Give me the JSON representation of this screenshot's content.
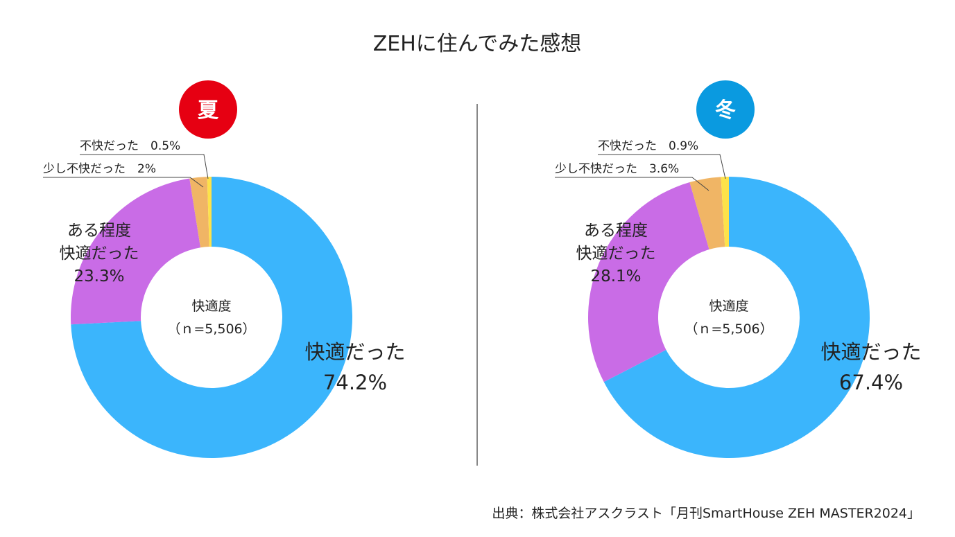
{
  "title": "ZEHに住んでみた感想",
  "source": "出典：株式会社アスクラスト「月刊SmartHouse ZEH MASTER2024」",
  "colors": {
    "comfortable": "#3bb5fc",
    "somewhat_comfortable": "#c96ce6",
    "somewhat_uncomfortable": "#f0b565",
    "uncomfortable": "#fde24a",
    "summer_badge": "#e60012",
    "winter_badge": "#0a9ae0",
    "divider": "#888888"
  },
  "chart_data": [
    {
      "type": "pie",
      "badge": "夏",
      "center_label": "快適度",
      "center_sub": "（ｎ=5,506）",
      "slices": [
        {
          "label": "快適だった",
          "value": 74.2,
          "pct_label": "74.2%"
        },
        {
          "label": "ある程度快適だった",
          "label_line1": "ある程度",
          "label_line2": "快適だった",
          "value": 23.3,
          "pct_label": "23.3%"
        },
        {
          "label": "少し不快だった",
          "value": 2,
          "pct_label": "2%",
          "label_text": "少し不快だった　2%"
        },
        {
          "label": "不快だった",
          "value": 0.5,
          "pct_label": "0.5%",
          "label_text": "不快だった　0.5%"
        }
      ]
    },
    {
      "type": "pie",
      "badge": "冬",
      "center_label": "快適度",
      "center_sub": "（ｎ=5,506）",
      "slices": [
        {
          "label": "快適だった",
          "value": 67.4,
          "pct_label": "67.4%"
        },
        {
          "label": "ある程度快適だった",
          "label_line1": "ある程度",
          "label_line2": "快適だった",
          "value": 28.1,
          "pct_label": "28.1%"
        },
        {
          "label": "少し不快だった",
          "value": 3.6,
          "pct_label": "3.6%",
          "label_text": "少し不快だった　3.6%"
        },
        {
          "label": "不快だった",
          "value": 0.9,
          "pct_label": "0.9%",
          "label_text": "不快だった　0.9%"
        }
      ]
    }
  ]
}
